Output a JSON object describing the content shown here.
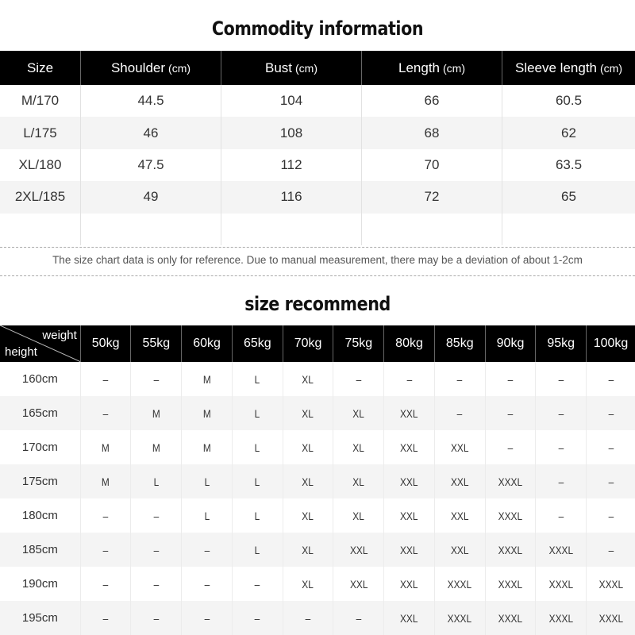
{
  "commodity": {
    "title": "Commodity information",
    "headers": [
      {
        "label": "Size",
        "unit": ""
      },
      {
        "label": "Shoulder",
        "unit": "(cm)"
      },
      {
        "label": "Bust",
        "unit": "(cm)"
      },
      {
        "label": "Length",
        "unit": "(cm)"
      },
      {
        "label": "Sleeve length",
        "unit": "(cm)"
      }
    ],
    "rows": [
      [
        "M/170",
        "44.5",
        "104",
        "66",
        "60.5"
      ],
      [
        "L/175",
        "46",
        "108",
        "68",
        "62"
      ],
      [
        "XL/180",
        "47.5",
        "112",
        "70",
        "63.5"
      ],
      [
        "2XL/185",
        "49",
        "116",
        "72",
        "65"
      ],
      [
        "",
        "",
        "",
        "",
        ""
      ]
    ],
    "note": "The size chart data is only for reference. Due to manual measurement, there may be a deviation of about 1-2cm"
  },
  "recommend": {
    "title": "size recommend",
    "corner_weight": "weight",
    "corner_height": "height",
    "weights": [
      "50kg",
      "55kg",
      "60kg",
      "65kg",
      "70kg",
      "75kg",
      "80kg",
      "85kg",
      "90kg",
      "95kg",
      "100kg"
    ],
    "rows": [
      {
        "height": "160cm",
        "sizes": [
          "–",
          "–",
          "M",
          "L",
          "XL",
          "–",
          "–",
          "–",
          "–",
          "–",
          "–"
        ]
      },
      {
        "height": "165cm",
        "sizes": [
          "–",
          "M",
          "M",
          "L",
          "XL",
          "XL",
          "XXL",
          "–",
          "–",
          "–",
          "–"
        ]
      },
      {
        "height": "170cm",
        "sizes": [
          "M",
          "M",
          "M",
          "L",
          "XL",
          "XL",
          "XXL",
          "XXL",
          "–",
          "–",
          "–"
        ]
      },
      {
        "height": "175cm",
        "sizes": [
          "M",
          "L",
          "L",
          "L",
          "XL",
          "XL",
          "XXL",
          "XXL",
          "XXXL",
          "–",
          "–"
        ]
      },
      {
        "height": "180cm",
        "sizes": [
          "–",
          "–",
          "L",
          "L",
          "XL",
          "XL",
          "XXL",
          "XXL",
          "XXXL",
          "–",
          "–"
        ]
      },
      {
        "height": "185cm",
        "sizes": [
          "–",
          "–",
          "–",
          "L",
          "XL",
          "XXL",
          "XXL",
          "XXL",
          "XXXL",
          "XXXL",
          "–"
        ]
      },
      {
        "height": "190cm",
        "sizes": [
          "–",
          "–",
          "–",
          "–",
          "XL",
          "XXL",
          "XXL",
          "XXXL",
          "XXXL",
          "XXXL",
          "XXXL"
        ]
      },
      {
        "height": "195cm",
        "sizes": [
          "–",
          "–",
          "–",
          "–",
          "–",
          "–",
          "XXL",
          "XXXL",
          "XXXL",
          "XXXL",
          "XXXL"
        ]
      }
    ]
  }
}
